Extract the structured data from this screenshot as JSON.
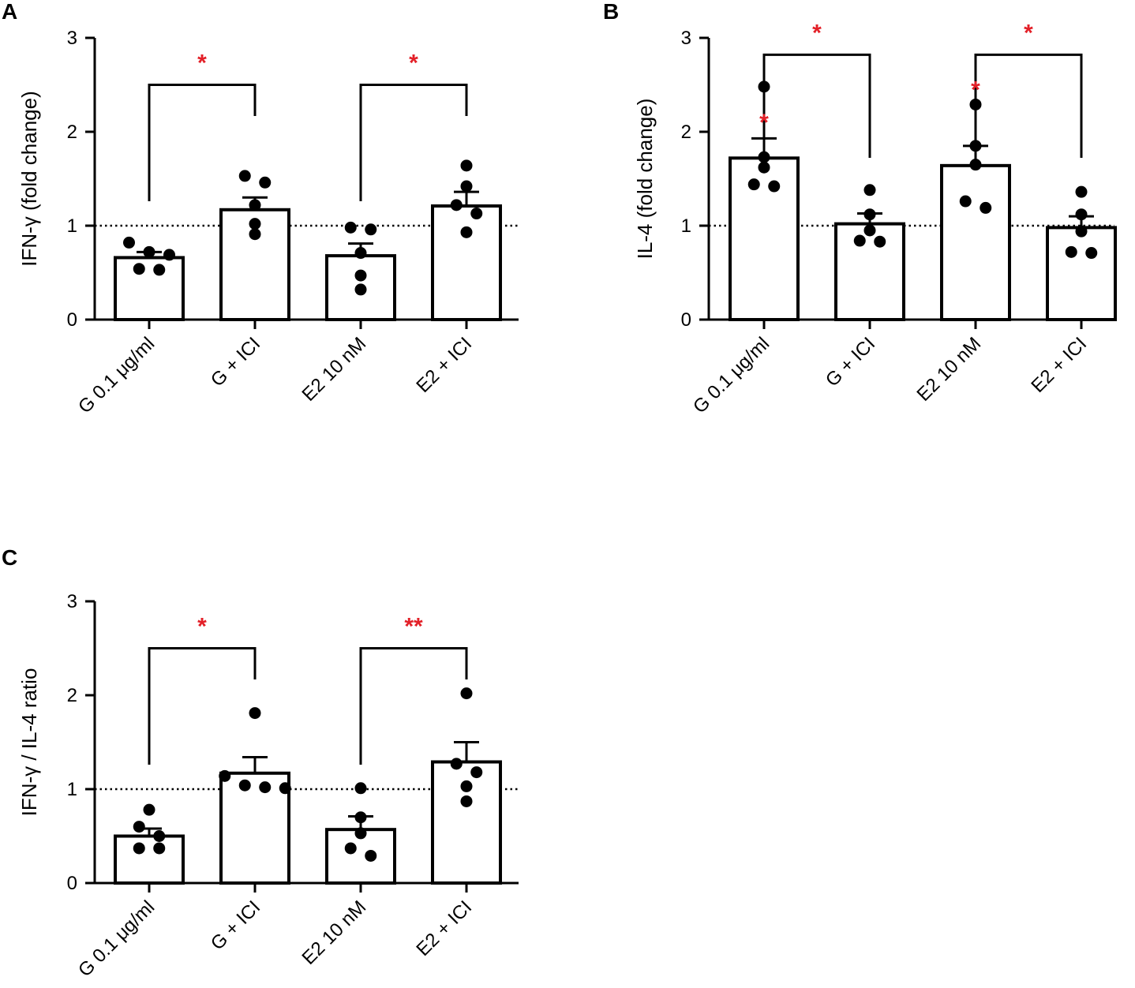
{
  "chart_data": [
    {
      "panel": "A",
      "type": "bar",
      "ylabel": "IFN-γ (fold change)",
      "xlabel": "",
      "ylim": [
        0,
        3
      ],
      "yticks": [
        "0",
        "1",
        "2",
        "3"
      ],
      "reference_line": 1,
      "categories": [
        "G 0.1 μg/ml",
        "G + ICI",
        "E2 10 nM",
        "E2 + ICI"
      ],
      "values": [
        0.66,
        1.17,
        0.68,
        1.21
      ],
      "sem": [
        0.06,
        0.13,
        0.13,
        0.15
      ],
      "points": [
        [
          0.82,
          0.72,
          0.69,
          0.54,
          0.53
        ],
        [
          1.53,
          1.46,
          1.22,
          1.02,
          0.91
        ],
        [
          0.98,
          0.96,
          0.71,
          0.47,
          0.32
        ],
        [
          1.64,
          1.42,
          1.22,
          1.13,
          0.93
        ]
      ],
      "brackets": [
        {
          "from": 0,
          "to": 1,
          "height": 2.5,
          "label": "*"
        },
        {
          "from": 2,
          "to": 3,
          "height": 2.5,
          "label": "*"
        }
      ],
      "bar_markers": []
    },
    {
      "panel": "B",
      "type": "bar",
      "ylabel": "IL-4 (fold change)",
      "xlabel": "",
      "ylim": [
        0,
        3
      ],
      "yticks": [
        "0",
        "1",
        "2",
        "3"
      ],
      "reference_line": 1,
      "categories": [
        "G 0.1 μg/ml",
        "G + ICI",
        "E2 10 nM",
        "E2 + ICI"
      ],
      "values": [
        1.72,
        1.02,
        1.64,
        0.98
      ],
      "sem": [
        0.21,
        0.11,
        0.21,
        0.12
      ],
      "points": [
        [
          2.48,
          1.73,
          1.62,
          1.44,
          1.42
        ],
        [
          1.38,
          1.12,
          0.95,
          0.84,
          0.83
        ],
        [
          2.29,
          1.85,
          1.65,
          1.26,
          1.19
        ],
        [
          1.36,
          1.12,
          0.94,
          0.72,
          0.71
        ]
      ],
      "brackets": [
        {
          "from": 0,
          "to": 1,
          "height": 2.82,
          "label": "*"
        },
        {
          "from": 2,
          "to": 3,
          "height": 2.82,
          "label": "*"
        }
      ],
      "bar_markers": [
        {
          "index": 0,
          "y": 2.15,
          "label": "*"
        },
        {
          "index": 2,
          "y": 2.5,
          "label": "*"
        }
      ]
    },
    {
      "panel": "C",
      "type": "bar",
      "ylabel": "IFN-γ / IL-4 ratio",
      "xlabel": "",
      "ylim": [
        0,
        3
      ],
      "yticks": [
        "0",
        "1",
        "2",
        "3"
      ],
      "reference_line": 1,
      "categories": [
        "G 0.1 μg/ml",
        "G + ICI",
        "E2 10 nM",
        "E2 + ICI"
      ],
      "values": [
        0.5,
        1.17,
        0.57,
        1.29
      ],
      "sem": [
        0.08,
        0.17,
        0.14,
        0.21
      ],
      "points": [
        [
          0.78,
          0.6,
          0.5,
          0.37,
          0.37
        ],
        [
          1.81,
          1.14,
          1.04,
          1.02,
          1.01
        ],
        [
          1.01,
          0.7,
          0.53,
          0.37,
          0.29
        ],
        [
          2.02,
          1.27,
          1.18,
          1.03,
          0.87
        ]
      ],
      "brackets": [
        {
          "from": 0,
          "to": 1,
          "height": 2.5,
          "label": "*"
        },
        {
          "from": 2,
          "to": 3,
          "height": 2.5,
          "label": "**"
        }
      ],
      "bar_markers": []
    }
  ],
  "colors": {
    "axis": "#000000",
    "bar_fill": "#ffffff",
    "significance": "#e32028"
  }
}
